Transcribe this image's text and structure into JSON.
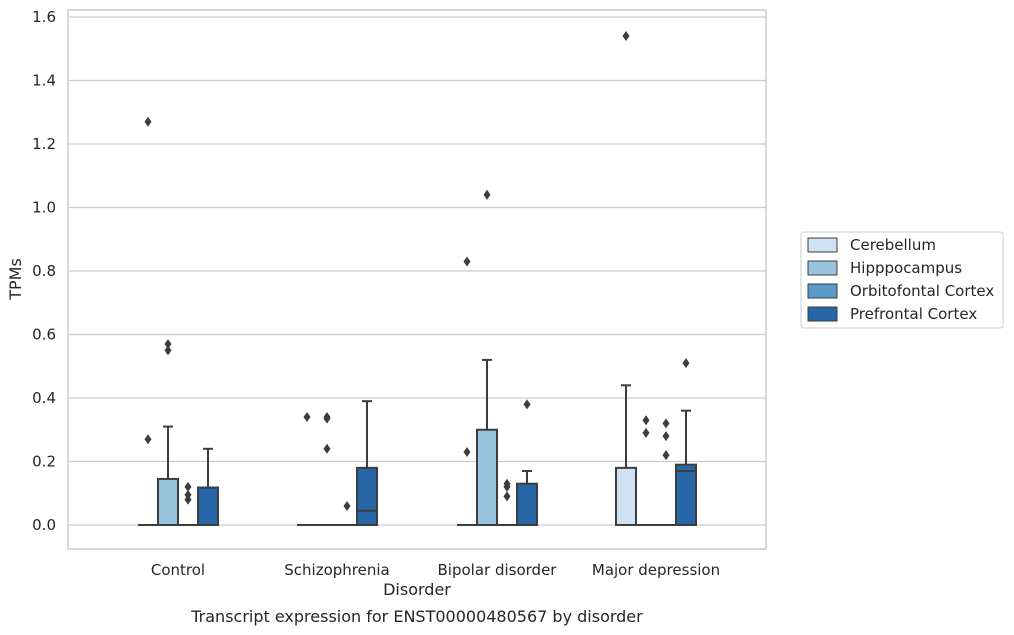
{
  "caption": "Transcript expression for ENST00000480567 by disorder",
  "chart_data": {
    "type": "box",
    "xlabel": "Disorder",
    "ylabel": "TPMs",
    "ylim": [
      -0.075,
      1.62
    ],
    "yticks": [
      "0.0",
      "0.2",
      "0.4",
      "0.6",
      "0.8",
      "1.0",
      "1.2",
      "1.4",
      "1.6"
    ],
    "categories": [
      "Control",
      "Schizophrenia",
      "Bipolar disorder",
      "Major depression"
    ],
    "grid": "horizontal",
    "legend_placement": "right",
    "series": [
      {
        "name": "Cerebellum",
        "color": "#d0e1f2",
        "boxes": [
          {
            "q1": 0,
            "median": 0,
            "q3": 0,
            "whisker_low": 0,
            "whisker_high": 0,
            "outliers": [
              0.27,
              1.27
            ]
          },
          {
            "q1": 0,
            "median": 0,
            "q3": 0,
            "whisker_low": 0,
            "whisker_high": 0,
            "outliers": [
              0.34
            ]
          },
          {
            "q1": 0,
            "median": 0,
            "q3": 0,
            "whisker_low": 0,
            "whisker_high": 0,
            "outliers": [
              0.23,
              0.83
            ]
          },
          {
            "q1": 0,
            "median": 0,
            "q3": 0.18,
            "whisker_low": 0,
            "whisker_high": 0.44,
            "outliers": [
              1.54
            ]
          }
        ]
      },
      {
        "name": "Hipppocampus",
        "color": "#9ac3dd",
        "boxes": [
          {
            "q1": 0,
            "median": 0,
            "q3": 0.145,
            "whisker_low": 0,
            "whisker_high": 0.31,
            "outliers": [
              0.55,
              0.57
            ]
          },
          {
            "q1": 0,
            "median": 0,
            "q3": 0,
            "whisker_low": 0,
            "whisker_high": 0,
            "outliers": [
              0.24,
              0.335,
              0.34
            ]
          },
          {
            "q1": 0,
            "median": 0,
            "q3": 0.3,
            "whisker_low": 0,
            "whisker_high": 0.52,
            "outliers": [
              1.04
            ]
          },
          {
            "q1": 0,
            "median": 0,
            "q3": 0,
            "whisker_low": 0,
            "whisker_high": 0,
            "outliers": [
              0.29,
              0.33
            ]
          }
        ]
      },
      {
        "name": "Orbitofontal Cortex",
        "color": "#5a9bc9",
        "boxes": [
          {
            "q1": 0,
            "median": 0,
            "q3": 0,
            "whisker_low": 0,
            "whisker_high": 0,
            "outliers": [
              0.08,
              0.095,
              0.12
            ]
          },
          {
            "q1": 0,
            "median": 0,
            "q3": 0,
            "whisker_low": 0,
            "whisker_high": 0,
            "outliers": [
              0.06
            ]
          },
          {
            "q1": 0,
            "median": 0,
            "q3": 0,
            "whisker_low": 0,
            "whisker_high": 0,
            "outliers": [
              0.09,
              0.12,
              0.13
            ]
          },
          {
            "q1": 0,
            "median": 0,
            "q3": 0,
            "whisker_low": 0,
            "whisker_high": 0,
            "outliers": [
              0.22,
              0.28,
              0.32
            ]
          }
        ]
      },
      {
        "name": "Prefrontal Cortex",
        "color": "#2767a8",
        "boxes": [
          {
            "q1": 0,
            "median": 0,
            "q3": 0.118,
            "whisker_low": 0,
            "whisker_high": 0.24,
            "outliers": []
          },
          {
            "q1": 0,
            "median": 0.045,
            "q3": 0.18,
            "whisker_low": 0,
            "whisker_high": 0.39,
            "outliers": []
          },
          {
            "q1": 0,
            "median": 0,
            "q3": 0.13,
            "whisker_low": 0,
            "whisker_high": 0.17,
            "outliers": [
              0.38
            ]
          },
          {
            "q1": 0,
            "median": 0.17,
            "q3": 0.19,
            "whisker_low": 0,
            "whisker_high": 0.36,
            "outliers": [
              0.51
            ]
          }
        ]
      }
    ]
  }
}
